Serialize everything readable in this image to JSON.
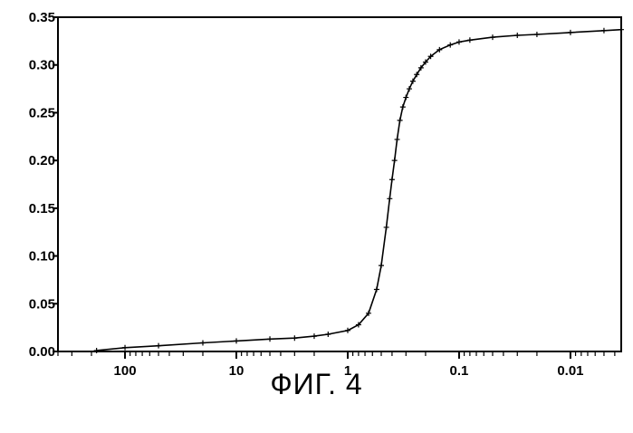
{
  "caption": "ФИГ. 4",
  "chart_data": {
    "type": "line",
    "title": "",
    "xlabel": "",
    "ylabel": "",
    "x_scale": "log",
    "x_reversed": true,
    "xlim": [
      400,
      0.0035
    ],
    "ylim": [
      0,
      0.35
    ],
    "x_ticks": [
      {
        "value": 100,
        "label": "100"
      },
      {
        "value": 10,
        "label": "10"
      },
      {
        "value": 1,
        "label": "1"
      },
      {
        "value": 0.1,
        "label": "0.1"
      },
      {
        "value": 0.01,
        "label": "0.01"
      }
    ],
    "y_ticks": [
      {
        "value": 0.0,
        "label": "0.00"
      },
      {
        "value": 0.05,
        "label": "0.05"
      },
      {
        "value": 0.1,
        "label": "0.10"
      },
      {
        "value": 0.15,
        "label": "0.15"
      },
      {
        "value": 0.2,
        "label": "0.20"
      },
      {
        "value": 0.25,
        "label": "0.25"
      },
      {
        "value": 0.3,
        "label": "0.30"
      },
      {
        "value": 0.35,
        "label": "0.35"
      }
    ],
    "grid": false,
    "marker": "+",
    "color": "#000000",
    "series": [
      {
        "x": [
          180,
          100,
          50,
          20,
          10,
          5,
          3,
          2,
          1.5,
          1,
          0.8,
          0.65,
          0.55,
          0.5,
          0.45,
          0.42,
          0.4,
          0.38,
          0.36,
          0.34,
          0.32,
          0.3,
          0.28,
          0.26,
          0.24,
          0.22,
          0.2,
          0.18,
          0.15,
          0.12,
          0.1,
          0.08,
          0.05,
          0.03,
          0.02,
          0.01,
          0.005,
          0.0035
        ],
        "y": [
          0.001,
          0.004,
          0.006,
          0.009,
          0.011,
          0.013,
          0.014,
          0.016,
          0.018,
          0.022,
          0.028,
          0.04,
          0.065,
          0.09,
          0.13,
          0.16,
          0.18,
          0.2,
          0.222,
          0.242,
          0.256,
          0.266,
          0.275,
          0.283,
          0.29,
          0.297,
          0.303,
          0.309,
          0.316,
          0.321,
          0.324,
          0.326,
          0.329,
          0.331,
          0.332,
          0.334,
          0.336,
          0.337
        ]
      }
    ]
  }
}
